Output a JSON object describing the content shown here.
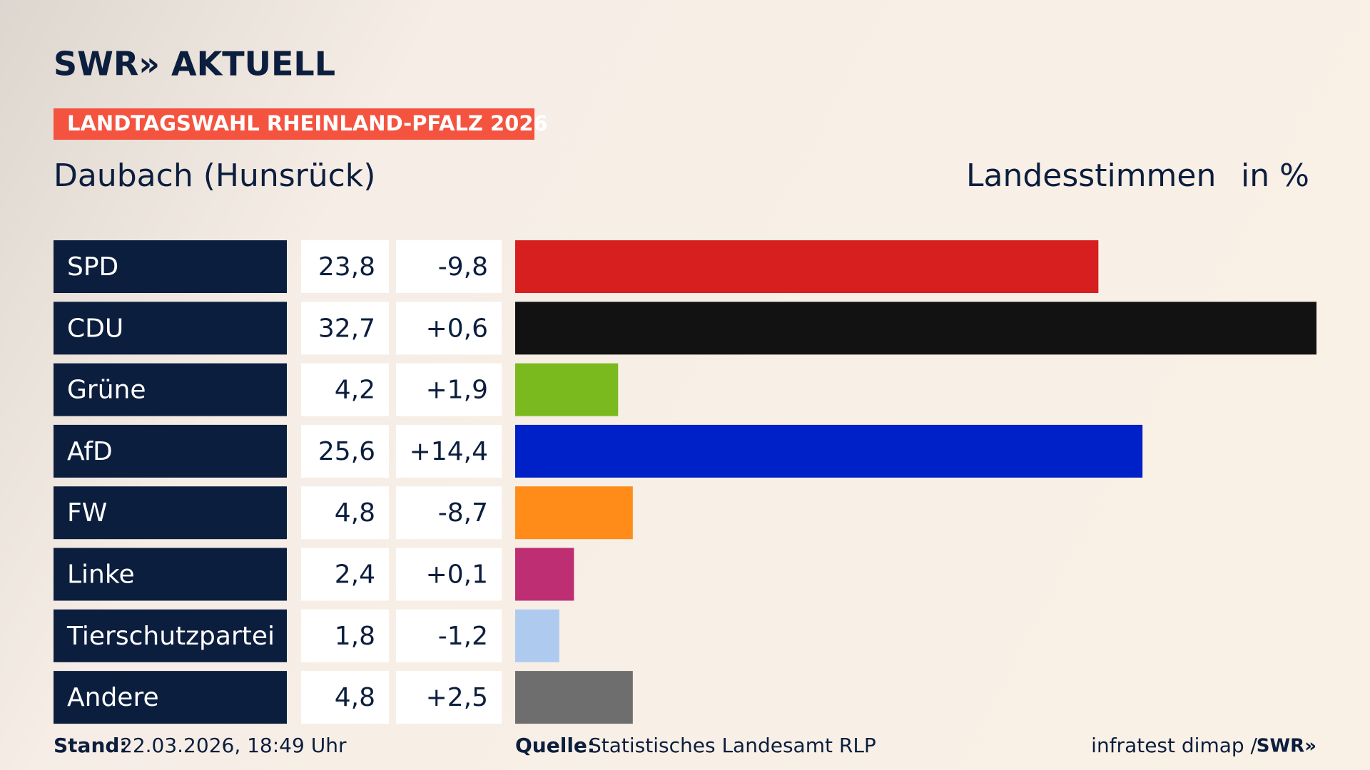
{
  "chart_data": {
    "type": "bar",
    "brand": "SWR» AKTUELL",
    "tag": "LANDTAGSWAHL RHEINLAND-PFALZ 2026",
    "title": "Daubach (Hunsrück)",
    "subtitle": "Landesstimmen",
    "unit": "in %",
    "categories": [
      "SPD",
      "CDU",
      "Grüne",
      "AfD",
      "FW",
      "Linke",
      "Tierschutzpartei",
      "Andere"
    ],
    "values": [
      23.8,
      32.7,
      4.2,
      25.6,
      4.8,
      2.4,
      1.8,
      4.8
    ],
    "value_labels": [
      "23,8",
      "32,7",
      "4,2",
      "25,6",
      "4,8",
      "2,4",
      "1,8",
      "4,8"
    ],
    "changes": [
      -9.8,
      0.6,
      1.9,
      14.4,
      -8.7,
      0.1,
      -1.2,
      2.5
    ],
    "change_labels": [
      "-9,8",
      "+0,6",
      "+1,9",
      "+14,4",
      "-8,7",
      "+0,1",
      "-1,2",
      "+2,5"
    ],
    "colors": [
      "#d81f1f",
      "#121212",
      "#7aba1e",
      "#0020c8",
      "#ff8c19",
      "#bd2f72",
      "#aecbef",
      "#6e6e6e"
    ],
    "stand_label": "Stand:",
    "stand": "22.03.2026, 18:49 Uhr",
    "source_label": "Quelle:",
    "source": "Statistisches Landesamt RLP",
    "credit": "infratest dimap /",
    "credit_brand": "SWR»"
  }
}
